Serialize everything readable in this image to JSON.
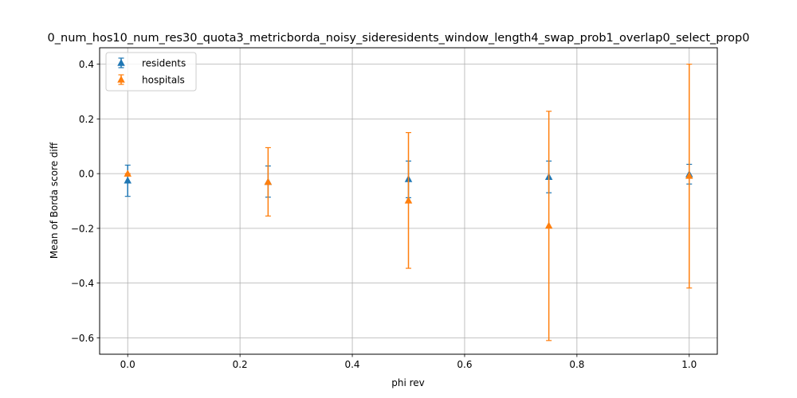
{
  "chart_data": {
    "type": "scatter",
    "title": "0_num_hos10_num_res30_quota3_metricborda_noisy_sideresidents_window_length4_swap_prob1_overlap0_select_prop0",
    "xlabel": "phi rev",
    "ylabel": "Mean of Borda score diff",
    "xlim": [
      -0.05,
      1.05
    ],
    "ylim": [
      -0.66,
      0.46
    ],
    "xticks": [
      0.0,
      0.2,
      0.4,
      0.6,
      0.8,
      1.0
    ],
    "xtick_labels": [
      "0.0",
      "0.2",
      "0.4",
      "0.6",
      "0.8",
      "1.0"
    ],
    "yticks": [
      -0.6,
      -0.4,
      -0.2,
      0.0,
      0.2,
      0.4
    ],
    "ytick_labels": [
      "−0.6",
      "−0.4",
      "−0.2",
      "0.0",
      "0.2",
      "0.4"
    ],
    "grid": true,
    "legend_position": "top-left",
    "series": [
      {
        "name": "residents",
        "color": "#1f77b4",
        "marker": "triangle-up",
        "x": [
          0.0,
          0.25,
          0.5,
          0.75,
          1.0
        ],
        "y": [
          -0.025,
          -0.03,
          -0.02,
          -0.012,
          -0.002
        ],
        "err_low": [
          -0.083,
          -0.086,
          -0.088,
          -0.07,
          -0.038
        ],
        "err_high": [
          0.031,
          0.028,
          0.046,
          0.046,
          0.034
        ]
      },
      {
        "name": "hospitals",
        "color": "#ff7f0e",
        "marker": "triangle-up",
        "x": [
          0.0,
          0.25,
          0.5,
          0.75,
          1.0
        ],
        "y": [
          0.0,
          -0.03,
          -0.098,
          -0.19,
          -0.008
        ],
        "err_low": [
          0.0,
          -0.155,
          -0.346,
          -0.61,
          -0.418
        ],
        "err_high": [
          0.0,
          0.095,
          0.15,
          0.228,
          0.4
        ]
      }
    ]
  }
}
